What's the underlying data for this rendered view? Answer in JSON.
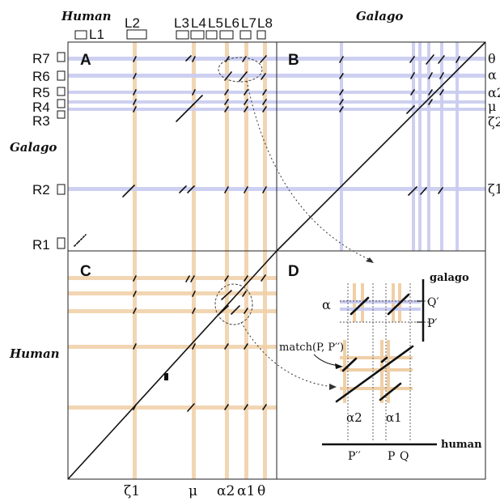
{
  "species": {
    "human_top": "Human",
    "galago_top": "Galago",
    "galago_left": "Galago",
    "human_left": "Human"
  },
  "panels": {
    "A": "A",
    "B": "B",
    "C": "C",
    "D": "D"
  },
  "top_row": [
    "L1",
    "L2",
    "L3",
    "L4",
    "L5",
    "L6",
    "L7",
    "L8"
  ],
  "left_rows": [
    "R7",
    "R6",
    "R5",
    "R4",
    "R3",
    "R2",
    "R1"
  ],
  "right_labels": [
    "θ",
    "α",
    "α2",
    "μ",
    "ζ2",
    "ζ1"
  ],
  "bottom_labels": [
    "ζ1",
    "μ",
    "α2",
    "α1",
    "θ"
  ],
  "inset": {
    "galago": "galago",
    "human": "human",
    "alpha": "α",
    "q_prime": "Q′",
    "p_prime": "P′",
    "match": "match(P, P′′)",
    "alpha2": "α2",
    "alpha1": "α1",
    "p_dprime": "P′′",
    "p": "P",
    "q": "Q"
  },
  "colors": {
    "human_band": "#f0cfa6",
    "galago_band": "#c9cbef",
    "ink": "#111111"
  }
}
